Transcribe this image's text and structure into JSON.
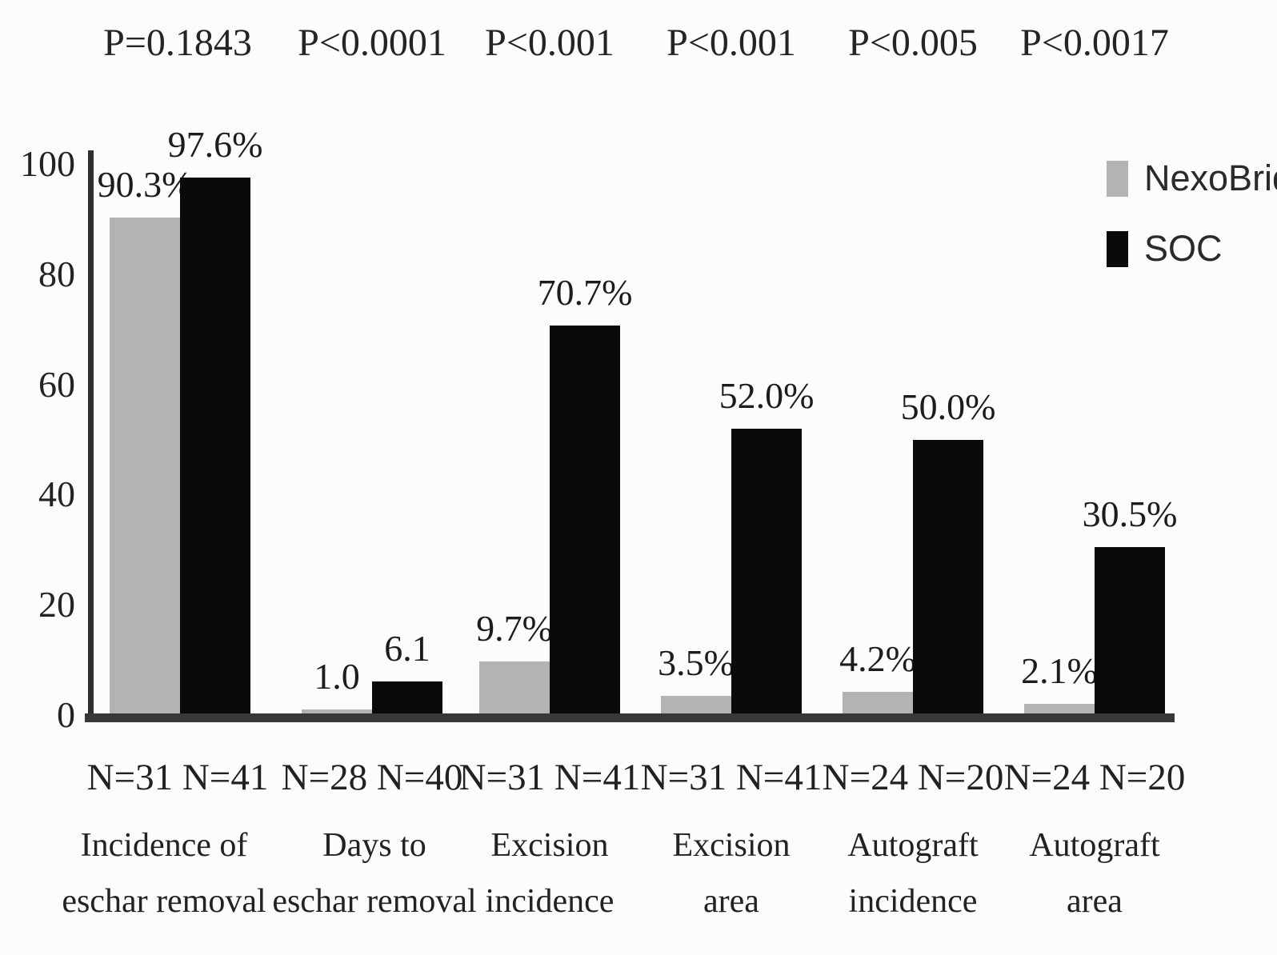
{
  "chart_data": {
    "type": "bar",
    "title": "",
    "xlabel": "",
    "ylabel": "",
    "ylim": [
      0,
      100
    ],
    "yticks": [
      "0",
      "20",
      "40",
      "60",
      "80",
      "100"
    ],
    "grid": false,
    "legend_position": "top-right",
    "categories": [
      "Incidence of eschar removal",
      "Days to eschar removal",
      "Excision incidence",
      "Excision area",
      "Autograft incidence",
      "Autograft area"
    ],
    "series": [
      {
        "name": "NexoBrid",
        "color": "#b3b3b3",
        "values": [
          90.3,
          1.0,
          9.7,
          3.5,
          4.2,
          2.1
        ]
      },
      {
        "name": "SOC",
        "color": "#0a0a0a",
        "values": [
          97.6,
          6.1,
          70.7,
          52.0,
          50.0,
          30.5
        ]
      }
    ],
    "groups": [
      {
        "p_label": "P=0.1843",
        "n_label": "N=31 N=41",
        "category_line1": "Incidence of",
        "category_line2": "eschar removal",
        "nexobrid_label": "90.3%",
        "soc_label": "97.6%"
      },
      {
        "p_label": "P<0.0001",
        "n_label": "N=28 N=40",
        "category_line1": "Days to",
        "category_line2": "eschar removal",
        "nexobrid_label": "1.0",
        "soc_label": "6.1"
      },
      {
        "p_label": "P<0.001",
        "n_label": "N=31 N=41",
        "category_line1": "Excision",
        "category_line2": "incidence",
        "nexobrid_label": "9.7%",
        "soc_label": "70.7%"
      },
      {
        "p_label": "P<0.001",
        "n_label": "N=31 N=41",
        "category_line1": "Excision",
        "category_line2": "area",
        "nexobrid_label": "3.5%",
        "soc_label": "52.0%"
      },
      {
        "p_label": "P<0.005",
        "n_label": "N=24 N=20",
        "category_line1": "Autograft",
        "category_line2": "incidence",
        "nexobrid_label": "4.2%",
        "soc_label": "50.0%"
      },
      {
        "p_label": "P<0.0017",
        "n_label": "N=24 N=20",
        "category_line1": "Autograft",
        "category_line2": "area",
        "nexobrid_label": "2.1%",
        "soc_label": "30.5%"
      }
    ],
    "legend": [
      {
        "label": "NexoBrid",
        "color": "#b3b3b3"
      },
      {
        "label": "SOC",
        "color": "#0a0a0a"
      }
    ]
  },
  "colors": {
    "nexobrid": "#b3b3b3",
    "soc": "#0a0a0a",
    "axis": "#383838"
  }
}
